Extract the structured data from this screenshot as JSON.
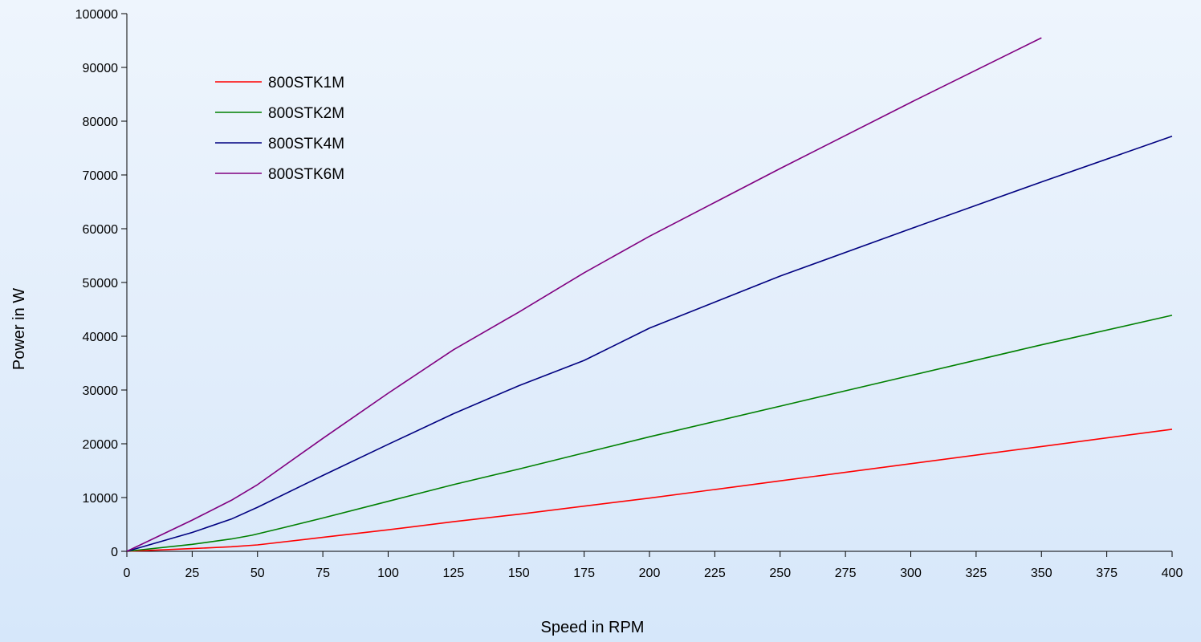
{
  "chart_data": {
    "type": "line",
    "title": "",
    "xlabel": "Speed in RPM",
    "ylabel": "Power in W",
    "xlim": [
      0,
      400
    ],
    "ylim": [
      0,
      100000
    ],
    "x_ticks": [
      0,
      25,
      50,
      75,
      100,
      125,
      150,
      175,
      200,
      225,
      250,
      275,
      300,
      325,
      350,
      375,
      400
    ],
    "y_ticks": [
      0,
      10000,
      20000,
      30000,
      40000,
      50000,
      60000,
      70000,
      80000,
      90000,
      100000
    ],
    "grid": false,
    "legend_position": "top-left",
    "series": [
      {
        "name": "800STK1M",
        "color": "#ff0000",
        "x": [
          0,
          25,
          40,
          50,
          75,
          100,
          125,
          150,
          175,
          200,
          250,
          300,
          350,
          400
        ],
        "y": [
          0,
          500,
          850,
          1200,
          2600,
          4000,
          5500,
          6900,
          8400,
          9900,
          13100,
          16300,
          19500,
          22700
        ]
      },
      {
        "name": "800STK2M",
        "color": "#008000",
        "x": [
          0,
          25,
          40,
          48,
          60,
          75,
          100,
          125,
          150,
          175,
          200,
          250,
          300,
          350,
          400
        ],
        "y": [
          0,
          1300,
          2300,
          3000,
          4400,
          6200,
          9300,
          12400,
          15300,
          18300,
          21300,
          27000,
          32700,
          38400,
          43900
        ]
      },
      {
        "name": "800STK4M",
        "color": "#000080",
        "x": [
          0,
          25,
          40,
          50,
          75,
          100,
          125,
          150,
          175,
          200,
          250,
          300,
          350,
          400
        ],
        "y": [
          0,
          3500,
          6000,
          8200,
          14100,
          19900,
          25600,
          30800,
          35500,
          41500,
          51200,
          60000,
          68700,
          77200
        ]
      },
      {
        "name": "800STK6M",
        "color": "#800080",
        "x": [
          0,
          25,
          40,
          50,
          75,
          100,
          125,
          150,
          175,
          200,
          250,
          300,
          350
        ],
        "y": [
          0,
          5800,
          9500,
          12400,
          21000,
          29400,
          37500,
          44500,
          51800,
          58600,
          71200,
          83500,
          95500
        ]
      }
    ]
  }
}
